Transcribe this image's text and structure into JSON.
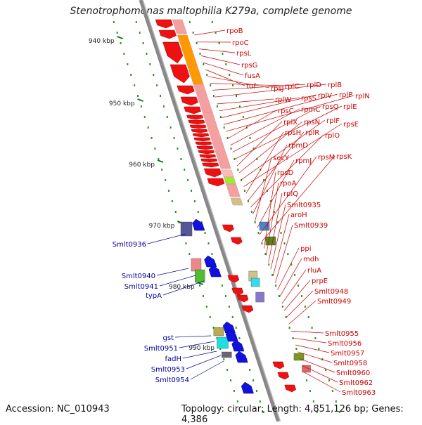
{
  "title": "Stenotrophomonas maltophilia K279a, complete genome",
  "footer": {
    "accession": "Accession: NC_010943",
    "summary": "Topology: circular; Length: 4,851,126 bp; Genes: 4,386"
  },
  "ticks": [
    "940 kbp",
    "950 kbp",
    "960 kbp",
    "970 kbp",
    "980 kbp",
    "990 kbp"
  ],
  "colors": {
    "forward_gene": "#ee1111",
    "reverse_gene": "#1111dd",
    "right_label": "#cc0000",
    "left_label": "#000099",
    "ribosomal": "#f4a0a0",
    "orange": "#ff9900",
    "backbone": "#888888"
  },
  "right_labels": [
    "rpoB",
    "rpoC",
    "rpsL",
    "rpsG",
    "fusA",
    "tuf",
    "rpsJ",
    "rplC",
    "rplD",
    "rplB",
    "rplW",
    "rpsS",
    "rplV",
    "rplP",
    "rplN",
    "rpsC",
    "rpmC",
    "rpsQ",
    "rplE",
    "rplX",
    "rpsN",
    "rplF",
    "rpsE",
    "rpsH",
    "rplR",
    "rplO",
    "rpmD",
    "secY",
    "rpmJ",
    "rpsM",
    "rpsK",
    "rpsD",
    "rpoA",
    "rplQ",
    "Smlt0935",
    "aroH",
    "Smlt0939",
    "ppi",
    "mdh",
    "rluA",
    "prpE",
    "Smlt0948",
    "Smlt0949",
    "Smlt0955",
    "Smlt0956",
    "Smlt0957",
    "Smlt0958",
    "Smlt0960",
    "Smlt0962",
    "Smlt0963"
  ],
  "left_labels": [
    "Smlt0936",
    "Smlt0940",
    "Smlt0941",
    "typA",
    "gst",
    "Smlt0951",
    "fadH",
    "Smlt0953",
    "Smlt0954"
  ]
}
